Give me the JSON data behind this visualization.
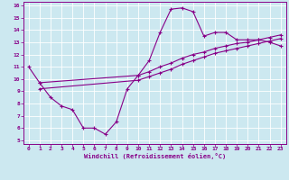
{
  "xlabel": "Windchill (Refroidissement éolien,°C)",
  "bg_color": "#cce8f0",
  "line_color": "#880088",
  "grid_color": "#ffffff",
  "xlim": [
    -0.5,
    23.5
  ],
  "ylim": [
    4.7,
    16.3
  ],
  "xticks": [
    0,
    1,
    2,
    3,
    4,
    5,
    6,
    7,
    8,
    9,
    10,
    11,
    12,
    13,
    14,
    15,
    16,
    17,
    18,
    19,
    20,
    21,
    22,
    23
  ],
  "yticks": [
    5,
    6,
    7,
    8,
    9,
    10,
    11,
    12,
    13,
    14,
    15,
    16
  ],
  "line1_x": [
    0,
    1,
    2,
    3,
    4,
    5,
    6,
    7,
    8,
    9,
    10,
    11,
    12,
    13,
    14,
    15,
    16,
    17,
    18,
    19,
    20,
    21,
    22,
    23
  ],
  "line1_y": [
    11.0,
    9.7,
    8.5,
    7.8,
    7.5,
    6.0,
    6.0,
    5.5,
    6.5,
    9.2,
    10.3,
    11.5,
    13.8,
    15.7,
    15.8,
    15.5,
    13.5,
    13.8,
    13.8,
    13.2,
    13.2,
    13.2,
    13.0,
    12.7
  ],
  "line2_x": [
    1,
    10,
    11,
    12,
    13,
    14,
    15,
    16,
    17,
    18,
    19,
    20,
    21,
    22,
    23
  ],
  "line2_y": [
    9.7,
    10.3,
    10.6,
    11.0,
    11.3,
    11.7,
    12.0,
    12.2,
    12.5,
    12.7,
    12.9,
    13.0,
    13.2,
    13.4,
    13.6
  ],
  "line3_x": [
    1,
    10,
    11,
    12,
    13,
    14,
    15,
    16,
    17,
    18,
    19,
    20,
    21,
    22,
    23
  ],
  "line3_y": [
    9.2,
    9.9,
    10.2,
    10.5,
    10.8,
    11.2,
    11.5,
    11.8,
    12.1,
    12.3,
    12.5,
    12.7,
    12.9,
    13.1,
    13.3
  ]
}
